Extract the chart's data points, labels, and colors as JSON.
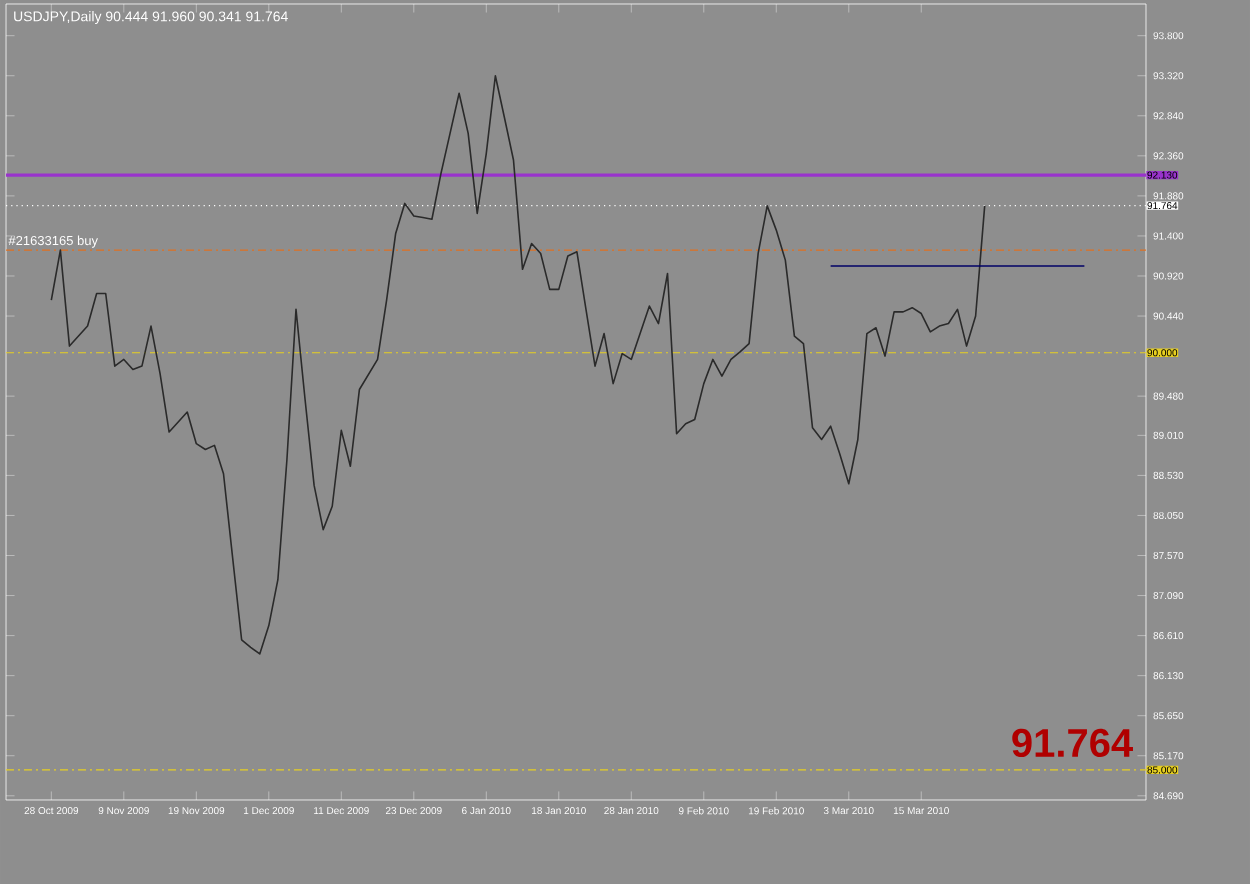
{
  "chart_data": {
    "type": "line",
    "title": "USDJPY,Daily  90.444 91.960 90.341 91.764",
    "categories": [
      "28 Oct 2009",
      null,
      null,
      null,
      null,
      null,
      null,
      null,
      "9 Nov 2009",
      null,
      null,
      null,
      null,
      null,
      null,
      null,
      "19 Nov 2009",
      null,
      null,
      null,
      null,
      null,
      null,
      null,
      "1 Dec 2009",
      null,
      null,
      null,
      null,
      null,
      null,
      null,
      "11 Dec 2009",
      null,
      null,
      null,
      null,
      null,
      null,
      null,
      "23 Dec 2009",
      null,
      null,
      null,
      null,
      null,
      null,
      null,
      "6 Jan 2010",
      null,
      null,
      null,
      null,
      null,
      null,
      null,
      "18 Jan 2010",
      null,
      null,
      null,
      null,
      null,
      null,
      null,
      "28 Jan 2010",
      null,
      null,
      null,
      null,
      null,
      null,
      null,
      "9 Feb 2010",
      null,
      null,
      null,
      null,
      null,
      null,
      null,
      "19 Feb 2010",
      null,
      null,
      null,
      null,
      null,
      null,
      null,
      "3 Mar 2010",
      null,
      null,
      null,
      null,
      null,
      null,
      null,
      "15 Mar 2010",
      null,
      null,
      null,
      null,
      null,
      null,
      null,
      null,
      null,
      null,
      null,
      null,
      null,
      null,
      null,
      null,
      null,
      null,
      null,
      null,
      null,
      null,
      null,
      null
    ],
    "ylim": [
      84.64,
      94.18
    ],
    "yticks": [
      {
        "value": 93.8,
        "label": "93.800"
      },
      {
        "value": 93.32,
        "label": "93.320"
      },
      {
        "value": 92.84,
        "label": "92.840"
      },
      {
        "value": 92.36,
        "label": "92.360"
      },
      {
        "value": 91.88,
        "label": "91.880"
      },
      {
        "value": 91.4,
        "label": "91.400"
      },
      {
        "value": 90.92,
        "label": "90.920"
      },
      {
        "value": 90.44,
        "label": "90.440"
      },
      {
        "value": 89.48,
        "label": "89.480"
      },
      {
        "value": 89.01,
        "label": "89.010"
      },
      {
        "value": 88.53,
        "label": "88.530"
      },
      {
        "value": 88.05,
        "label": "88.050"
      },
      {
        "value": 87.57,
        "label": "87.570"
      },
      {
        "value": 87.09,
        "label": "87.090"
      },
      {
        "value": 86.61,
        "label": "86.610"
      },
      {
        "value": 86.13,
        "label": "86.130"
      },
      {
        "value": 85.65,
        "label": "85.650"
      },
      {
        "value": 85.17,
        "label": "85.170"
      },
      {
        "value": 84.69,
        "label": "84.690"
      }
    ],
    "series": [
      {
        "color": "#2a2a2a",
        "values": [
          90.63,
          91.23,
          90.08,
          90.2,
          90.32,
          90.71,
          90.71,
          89.84,
          89.92,
          89.8,
          89.84,
          90.32,
          89.75,
          89.05,
          89.17,
          89.29,
          88.91,
          88.84,
          88.89,
          88.55,
          87.55,
          86.56,
          86.47,
          86.39,
          86.73,
          87.28,
          88.72,
          90.52,
          89.44,
          88.41,
          87.88,
          88.16,
          89.07,
          88.64,
          89.56,
          89.74,
          89.92,
          90.63,
          91.43,
          91.79,
          91.64,
          91.62,
          91.6,
          92.15,
          92.63,
          93.11,
          92.63,
          91.67,
          92.39,
          93.32,
          92.82,
          92.31,
          91.0,
          91.31,
          91.19,
          90.76,
          90.76,
          91.16,
          91.21,
          90.52,
          89.84,
          90.23,
          89.63,
          89.99,
          89.92,
          90.24,
          90.56,
          90.35,
          90.95,
          89.03,
          89.15,
          89.2,
          89.63,
          89.92,
          89.72,
          89.92,
          90.01,
          90.11,
          91.19,
          91.76,
          91.47,
          91.11,
          90.2,
          90.11,
          89.1,
          88.96,
          89.12,
          88.79,
          88.43,
          88.96,
          90.23,
          90.3,
          89.96,
          90.49,
          90.49,
          90.54,
          90.47,
          90.25,
          90.32,
          90.35,
          90.52,
          90.08,
          90.44,
          91.76,
          null,
          null,
          null,
          null,
          null,
          null,
          null,
          null,
          null,
          null,
          null,
          null,
          null,
          null,
          null,
          null,
          null
        ]
      },
      {
        "color": "#000066",
        "values": [
          null,
          null,
          null,
          null,
          null,
          null,
          null,
          null,
          null,
          null,
          null,
          null,
          null,
          null,
          null,
          null,
          null,
          null,
          null,
          null,
          null,
          null,
          null,
          null,
          null,
          null,
          null,
          null,
          null,
          null,
          null,
          null,
          null,
          null,
          null,
          null,
          null,
          null,
          null,
          null,
          null,
          null,
          null,
          null,
          null,
          null,
          null,
          null,
          null,
          null,
          null,
          null,
          null,
          null,
          null,
          null,
          null,
          null,
          null,
          null,
          null,
          null,
          null,
          null,
          null,
          null,
          null,
          null,
          null,
          null,
          null,
          null,
          null,
          null,
          null,
          null,
          null,
          null,
          null,
          null,
          null,
          null,
          null,
          null,
          null,
          null,
          91.04,
          91.04,
          91.04,
          91.04,
          91.04,
          91.04,
          91.04,
          91.04,
          91.04,
          91.04,
          91.04,
          91.04,
          91.04,
          91.04,
          91.04,
          91.04,
          91.04,
          91.04,
          91.04,
          91.04,
          91.04,
          91.04,
          91.04,
          91.04,
          91.04,
          91.04,
          91.04,
          91.04,
          91.04,
          null,
          null,
          null,
          null,
          null,
          null
        ]
      }
    ],
    "ref_lines": [
      {
        "axis": "y",
        "value": 92.13,
        "label": "92.130",
        "color": "#9933cc"
      },
      {
        "axis": "y",
        "value": 91.764,
        "label": "91.764",
        "color": "#ffffff",
        "line_style": "dotted"
      },
      {
        "axis": "y",
        "value": 91.23,
        "color": "#e07020",
        "line_style": "dashed"
      },
      {
        "axis": "y",
        "value": 90.0,
        "label": "90.000",
        "color": "#e8d020",
        "line_style": "dashed"
      },
      {
        "axis": "y",
        "value": 85.0,
        "label": "85.000",
        "color": "#e8d020",
        "line_style": "dashed"
      }
    ],
    "annotations": [
      {
        "text": "#21633165 buy",
        "y": 91.23
      },
      "91.764"
    ],
    "marker": "none",
    "line_style": "solid"
  }
}
